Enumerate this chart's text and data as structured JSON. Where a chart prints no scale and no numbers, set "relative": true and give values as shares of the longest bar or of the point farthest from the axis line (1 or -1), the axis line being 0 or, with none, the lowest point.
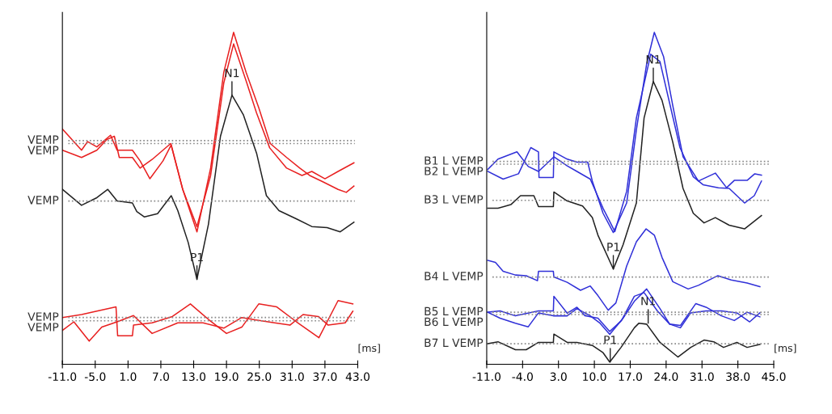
{
  "chart_data": [
    {
      "type": "line",
      "relative": true,
      "xlim": [
        -11,
        43
      ],
      "xticks": [
        {
          "value": -11,
          "label": "-11.0"
        },
        {
          "value": -5,
          "label": "-5.0"
        },
        {
          "value": 1,
          "label": "1.0"
        },
        {
          "value": 7,
          "label": "7.0"
        },
        {
          "value": 13,
          "label": "13.0"
        },
        {
          "value": 19,
          "label": "19.0"
        },
        {
          "value": 25,
          "label": "25.0"
        },
        {
          "value": 31,
          "label": "31.0"
        },
        {
          "value": 37,
          "label": "37.0"
        },
        {
          "value": 43,
          "label": "43.0"
        }
      ],
      "series": [
        {
          "color": "#e82020",
          "x": [
            -11.0,
            -7.5,
            -6.4,
            -4.7,
            -2.2,
            -1.0,
            1.8,
            3.2,
            5.0,
            7.4,
            8.9,
            11.0,
            13.6,
            16.1,
            18.5,
            20.3,
            22.6,
            24.9,
            27.0,
            30.0,
            32.4,
            34.2,
            36.6,
            39.4,
            40.9,
            42.3
          ],
          "values": [
            0.709,
            0.645,
            0.671,
            0.655,
            0.69,
            0.645,
            0.645,
            0.613,
            0.559,
            0.613,
            0.661,
            0.527,
            0.399,
            0.591,
            0.879,
            1.0,
            0.879,
            0.773,
            0.665,
            0.623,
            0.591,
            0.569,
            0.55,
            0.527,
            0.518,
            0.537
          ]
        },
        {
          "color": "#e82020",
          "x": [
            -11.0,
            -7.5,
            -4.7,
            -2.9,
            -1.5,
            -0.6,
            1.8,
            3.2,
            5.4,
            8.8,
            11.0,
            13.6,
            16.1,
            18.5,
            20.3,
            22.6,
            24.5,
            26.9,
            30.0,
            32.8,
            34.6,
            37.0,
            39.4,
            42.3
          ],
          "values": [
            0.645,
            0.623,
            0.645,
            0.677,
            0.687,
            0.623,
            0.623,
            0.591,
            0.617,
            0.665,
            0.527,
            0.415,
            0.569,
            0.847,
            0.965,
            0.853,
            0.757,
            0.652,
            0.591,
            0.569,
            0.581,
            0.559,
            0.581,
            0.607
          ]
        },
        {
          "color": "#222222",
          "x": [
            -11.0,
            -7.5,
            -4.7,
            -2.7,
            -1.0,
            1.8,
            2.6,
            4.0,
            6.4,
            8.9,
            10.1,
            12.0,
            13.6,
            15.7,
            17.9,
            20.0,
            22.1,
            24.5,
            26.3,
            28.6,
            31.8,
            34.6,
            37.4,
            39.8,
            42.3
          ],
          "values": [
            0.527,
            0.479,
            0.502,
            0.527,
            0.492,
            0.486,
            0.46,
            0.444,
            0.454,
            0.508,
            0.463,
            0.367,
            0.256,
            0.422,
            0.687,
            0.811,
            0.751,
            0.636,
            0.508,
            0.463,
            0.438,
            0.415,
            0.412,
            0.399,
            0.428
          ]
        },
        {
          "color": "#e82020",
          "x": [
            -11.0,
            -7.5,
            -4.7,
            -1.2,
            -0.9,
            1.8,
            2.0,
            5.4,
            9.1,
            12.4,
            15.8,
            19.0,
            21.8,
            24.9,
            28.2,
            31.8,
            35.9,
            39.4,
            42.1
          ],
          "values": [
            0.141,
            0.15,
            0.16,
            0.173,
            0.086,
            0.086,
            0.118,
            0.125,
            0.144,
            0.182,
            0.134,
            0.093,
            0.112,
            0.182,
            0.173,
            0.128,
            0.08,
            0.192,
            0.182
          ]
        },
        {
          "color": "#e82020",
          "x": [
            -11.0,
            -8.9,
            -6.1,
            -3.8,
            -1.0,
            2.0,
            5.4,
            10.1,
            14.7,
            18.5,
            21.8,
            24.2,
            27.8,
            30.6,
            33.0,
            35.8,
            37.6,
            40.7,
            42.1
          ],
          "values": [
            0.102,
            0.128,
            0.07,
            0.112,
            0.128,
            0.147,
            0.093,
            0.125,
            0.125,
            0.109,
            0.141,
            0.134,
            0.125,
            0.118,
            0.15,
            0.144,
            0.118,
            0.125,
            0.16
          ]
        }
      ],
      "ref_lines": [
        {
          "axis": "y",
          "value": 0.674,
          "label": "VEMP",
          "color": "#888888",
          "line_style": "dotted"
        },
        {
          "axis": "y",
          "value": 0.665,
          "label": "VEMP",
          "color": "#888888",
          "line_style": "dotted"
        },
        {
          "axis": "y",
          "value": 0.492,
          "label": "VEMP",
          "color": "#888888",
          "line_style": "dotted"
        },
        {
          "axis": "y",
          "value": 0.141,
          "label": "VEMP",
          "color": "#888888",
          "line_style": "dotted"
        },
        {
          "axis": "y",
          "value": 0.131,
          "label": "VEMP",
          "color": "#888888",
          "line_style": "dotted"
        }
      ],
      "annotations": [
        {
          "text": "N1",
          "x": 20.0,
          "y": 0.811
        },
        {
          "text": "P1",
          "x": 13.6,
          "y": 0.256
        },
        "[ms]"
      ]
    },
    {
      "type": "line",
      "relative": true,
      "xlim": [
        -11,
        45
      ],
      "xticks": [
        {
          "value": -11,
          "label": "-11.0"
        },
        {
          "value": -4,
          "label": "-4.0"
        },
        {
          "value": 3,
          "label": "3.0"
        },
        {
          "value": 10,
          "label": "10.0"
        },
        {
          "value": 17,
          "label": "17.0"
        },
        {
          "value": 24,
          "label": "24.0"
        },
        {
          "value": 31,
          "label": "31.0"
        },
        {
          "value": 38,
          "label": "38.0"
        },
        {
          "value": 45,
          "label": "45.0"
        }
      ],
      "series": [
        {
          "color": "#3030d8",
          "x": [
            -10.8,
            -7.8,
            -4.8,
            -2.4,
            -0.9,
            -0.8,
            2.0,
            2.1,
            4.7,
            6.6,
            8.7,
            9.6,
            11.7,
            13.7,
            16.3,
            18.2,
            20.2,
            21.7,
            23.5,
            25.3,
            27.3,
            30.3,
            33.6,
            35.8,
            37.3,
            39.8,
            41.3,
            42.6
          ],
          "values": [
            0.581,
            0.558,
            0.574,
            0.653,
            0.64,
            0.563,
            0.563,
            0.64,
            0.618,
            0.609,
            0.609,
            0.552,
            0.455,
            0.397,
            0.486,
            0.706,
            0.905,
            1.0,
            0.927,
            0.779,
            0.625,
            0.552,
            0.576,
            0.532,
            0.554,
            0.554,
            0.574,
            0.57
          ]
        },
        {
          "color": "#3030d8",
          "x": [
            -10.8,
            -8.8,
            -5.1,
            -2.9,
            -0.9,
            2.1,
            4.7,
            6.6,
            9.2,
            11.7,
            14.0,
            16.3,
            18.2,
            21.0,
            22.8,
            24.8,
            26.7,
            29.3,
            31.2,
            34.2,
            36.3,
            39.3,
            41.2,
            42.6
          ],
          "values": [
            0.587,
            0.618,
            0.64,
            0.596,
            0.581,
            0.625,
            0.598,
            0.581,
            0.558,
            0.47,
            0.4,
            0.521,
            0.742,
            0.934,
            0.912,
            0.779,
            0.653,
            0.565,
            0.541,
            0.532,
            0.53,
            0.486,
            0.508,
            0.552
          ]
        },
        {
          "color": "#222222",
          "x": [
            -10.8,
            -8.8,
            -6.3,
            -4.4,
            -1.8,
            -0.9,
            2.0,
            2.1,
            4.7,
            7.7,
            9.6,
            10.7,
            13.7,
            15.6,
            18.2,
            19.7,
            21.5,
            23.2,
            25.3,
            27.3,
            29.3,
            31.4,
            33.6,
            36.3,
            39.3,
            42.6
          ],
          "values": [
            0.47,
            0.47,
            0.481,
            0.508,
            0.508,
            0.475,
            0.475,
            0.519,
            0.492,
            0.477,
            0.442,
            0.389,
            0.287,
            0.36,
            0.486,
            0.742,
            0.852,
            0.795,
            0.669,
            0.53,
            0.455,
            0.426,
            0.442,
            0.419,
            0.408,
            0.448
          ]
        },
        {
          "color": "#3030d8",
          "x": [
            -10.8,
            -9.3,
            -7.8,
            -5.4,
            -3.3,
            -1.1,
            -0.9,
            2.0,
            2.1,
            4.7,
            7.3,
            9.2,
            10.7,
            12.7,
            14.2,
            16.3,
            18.2,
            20.1,
            21.7,
            23.2,
            25.3,
            28.3,
            30.3,
            34.1,
            36.7,
            39.8,
            42.3
          ],
          "values": [
            0.313,
            0.307,
            0.28,
            0.269,
            0.267,
            0.252,
            0.28,
            0.28,
            0.263,
            0.247,
            0.223,
            0.236,
            0.207,
            0.163,
            0.185,
            0.296,
            0.369,
            0.408,
            0.389,
            0.322,
            0.249,
            0.227,
            0.238,
            0.267,
            0.254,
            0.245,
            0.234
          ]
        },
        {
          "color": "#3030d8",
          "x": [
            -10.8,
            -8.4,
            -5.4,
            -0.9,
            2.0,
            2.1,
            4.7,
            6.6,
            8.2,
            10.7,
            13.0,
            15.3,
            17.8,
            19.7,
            22.3,
            24.7,
            26.8,
            29.8,
            31.8,
            34.8,
            37.3,
            39.8,
            42.3
          ],
          "values": [
            0.157,
            0.161,
            0.146,
            0.161,
            0.161,
            0.205,
            0.154,
            0.172,
            0.146,
            0.139,
            0.099,
            0.132,
            0.205,
            0.216,
            0.161,
            0.121,
            0.117,
            0.183,
            0.172,
            0.146,
            0.132,
            0.157,
            0.143
          ]
        },
        {
          "color": "#3030d8",
          "x": [
            -10.8,
            -8.4,
            -5.4,
            -2.9,
            -0.9,
            2.0,
            4.7,
            6.6,
            9.2,
            11.1,
            13.0,
            15.6,
            17.8,
            20.2,
            22.8,
            24.7,
            26.8,
            28.8,
            31.8,
            34.8,
            37.8,
            40.3,
            42.3
          ],
          "values": [
            0.157,
            0.139,
            0.124,
            0.113,
            0.155,
            0.146,
            0.146,
            0.168,
            0.146,
            0.124,
            0.09,
            0.139,
            0.19,
            0.227,
            0.168,
            0.121,
            0.11,
            0.155,
            0.161,
            0.161,
            0.155,
            0.128,
            0.155
          ]
        },
        {
          "color": "#222222",
          "x": [
            -10.8,
            -8.8,
            -5.4,
            -3.3,
            -0.9,
            2.0,
            2.1,
            4.7,
            6.6,
            9.6,
            11.7,
            13.0,
            15.2,
            17.8,
            18.7,
            20.2,
            22.8,
            26.3,
            28.8,
            31.4,
            33.3,
            35.2,
            37.8,
            39.8,
            42.3
          ],
          "values": [
            0.062,
            0.068,
            0.044,
            0.044,
            0.066,
            0.066,
            0.091,
            0.066,
            0.066,
            0.057,
            0.035,
            0.007,
            0.051,
            0.11,
            0.124,
            0.121,
            0.066,
            0.022,
            0.051,
            0.073,
            0.068,
            0.051,
            0.066,
            0.051,
            0.06
          ]
        }
      ],
      "ref_lines": [
        {
          "axis": "y",
          "value": 0.611,
          "label": "B1 L VEMP",
          "color": "#888888",
          "line_style": "dotted"
        },
        {
          "axis": "y",
          "value": 0.603,
          "label": "B2 L VEMP",
          "color": "#888888",
          "line_style": "dotted"
        },
        {
          "axis": "y",
          "value": 0.494,
          "label": "B3 L VEMP",
          "color": "#888888",
          "line_style": "dotted"
        },
        {
          "axis": "y",
          "value": 0.263,
          "label": "B4 L VEMP",
          "color": "#888888",
          "line_style": "dotted"
        },
        {
          "axis": "y",
          "value": 0.157,
          "label": "B5 L VEMP",
          "color": "#888888",
          "line_style": "dotted"
        },
        {
          "axis": "y",
          "value": 0.15,
          "label": "B6 L VEMP",
          "color": "#888888",
          "line_style": "dotted"
        },
        {
          "axis": "y",
          "value": 0.062,
          "label": "B7 L VEMP",
          "color": "#888888",
          "line_style": "dotted"
        }
      ],
      "annotations": [
        {
          "text": "N1",
          "x": 21.5,
          "y": 0.852
        },
        {
          "text": "P1",
          "x": 13.7,
          "y": 0.287
        },
        {
          "text": "N1",
          "x": 20.5,
          "y": 0.124
        },
        {
          "text": "P1",
          "x": 13.1,
          "y": 0.007
        },
        "[ms]"
      ]
    }
  ]
}
